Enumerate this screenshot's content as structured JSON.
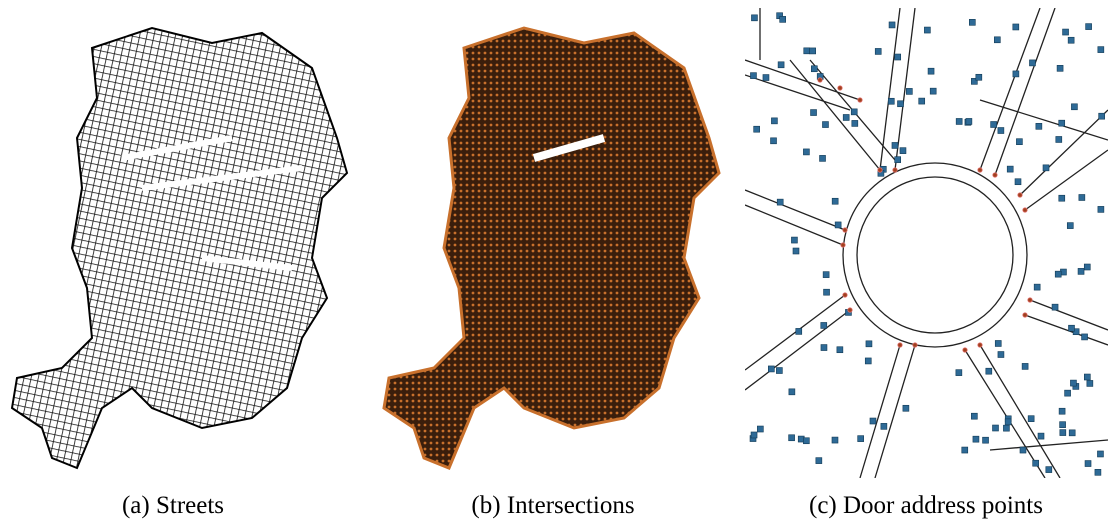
{
  "figure": {
    "panels": [
      {
        "caption": "(a) Streets"
      },
      {
        "caption": "(b) Intersections"
      },
      {
        "caption": "(c) Door address points"
      }
    ]
  }
}
